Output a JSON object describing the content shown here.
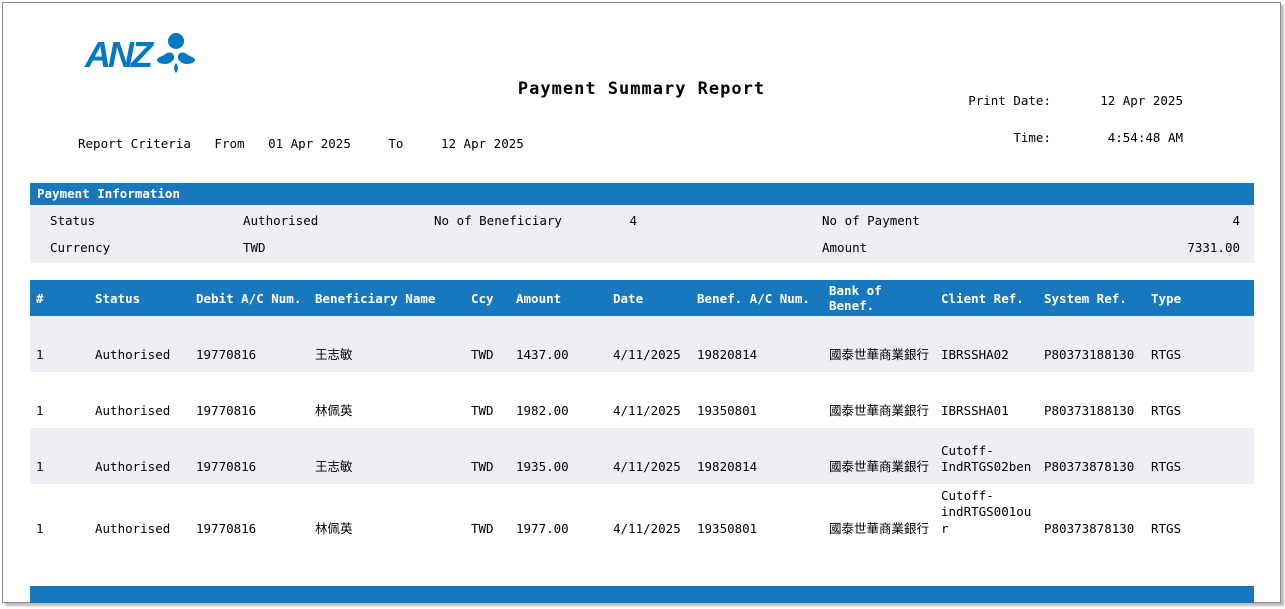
{
  "colors": {
    "bar_blue": "#1878be",
    "logo_blue": "#0079c1",
    "stripe": "#eeeef4",
    "header_text_white": "#ffffff"
  },
  "logo": {
    "text": "ANZ",
    "symbol": "anz-lotus-icon"
  },
  "header": {
    "title": "Payment Summary Report",
    "print_date_label": "Print Date:",
    "print_date": "12 Apr 2025",
    "time_label": "Time:",
    "time": "4:54:48 AM",
    "criteria_label": "Report Criteria",
    "from_label": "From",
    "from_date": "01 Apr 2025",
    "to_label": "To",
    "to_date": "12 Apr 2025"
  },
  "payment_info": {
    "section_title": "Payment Information",
    "status_label": "Status",
    "status_value": "Authorised",
    "beneficiary_label": "No of Beneficiary",
    "beneficiary_count": "4",
    "payment_label": "No of Payment",
    "payment_count": "4",
    "currency_label": "Currency",
    "currency_value": "TWD",
    "amount_label": "Amount",
    "amount_value": "7331.00"
  },
  "table": {
    "columns": [
      "#",
      "Status",
      "Debit A/C Num.",
      "Beneficiary Name",
      "Ccy",
      "Amount",
      "Date",
      "Benef. A/C Num.",
      "Bank of Benef.",
      "Client Ref.",
      "System Ref.",
      "Type"
    ],
    "column_keys": [
      "num",
      "status",
      "debit-ac-num",
      "beneficiary-name",
      "ccy",
      "amount",
      "date",
      "benef-ac-num",
      "bank-of-benef",
      "client-ref",
      "system-ref",
      "type"
    ],
    "rows": [
      [
        "1",
        "Authorised",
        "19770816",
        "王志敏",
        "TWD",
        "1437.00",
        "4/11/2025",
        "19820814",
        "國泰世華商業銀行",
        "IBRSSHA02",
        "P80373188130",
        "RTGS"
      ],
      [
        "1",
        "Authorised",
        "19770816",
        "林佩英",
        "TWD",
        "1982.00",
        "4/11/2025",
        "19350801",
        "國泰世華商業銀行",
        "IBRSSHA01",
        "P80373188130",
        "RTGS"
      ],
      [
        "1",
        "Authorised",
        "19770816",
        "王志敏",
        "TWD",
        "1935.00",
        "4/11/2025",
        "19820814",
        "國泰世華商業銀行",
        "Cutoff-IndRTGS02ben",
        "P80373878130",
        "RTGS"
      ],
      [
        "1",
        "Authorised",
        "19770816",
        "林佩英",
        "TWD",
        "1977.00",
        "4/11/2025",
        "19350801",
        "國泰世華商業銀行",
        "Cutoff-indRTGS001our",
        "P80373878130",
        "RTGS"
      ]
    ]
  }
}
